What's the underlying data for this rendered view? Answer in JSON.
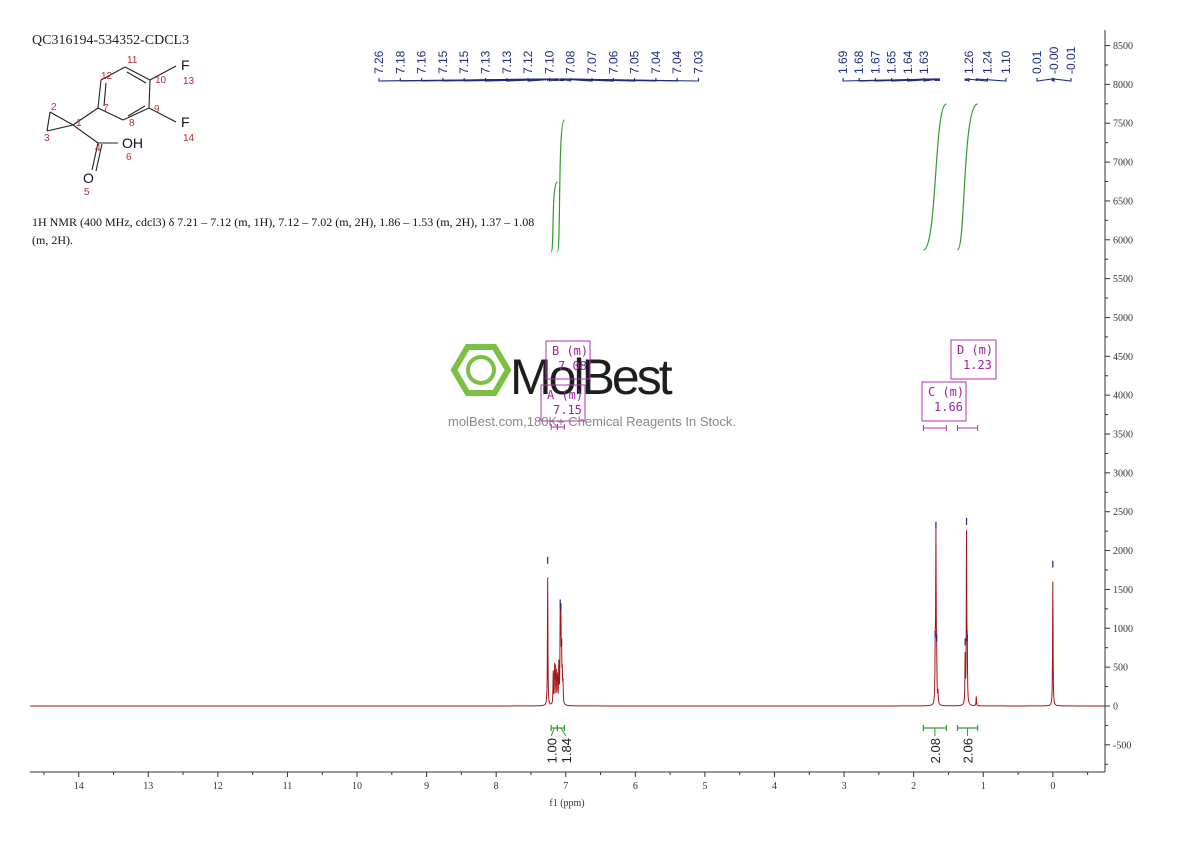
{
  "header": {
    "sample_id": "QC316194-534352-CDCL3",
    "nmr_line1": "1H NMR (400 MHz, cdcl3) δ 7.21 – 7.12 (m, 1H), 7.12 – 7.02 (m, 2H), 1.86 – 1.53 (m, 2H), 1.37 – 1.08",
    "nmr_line2": "(m, 2H)."
  },
  "structure": {
    "atoms": [
      {
        "label": "F",
        "num": "13"
      },
      {
        "label": "F",
        "num": "14"
      },
      {
        "label": "OH",
        "num": "6"
      },
      {
        "label": "O",
        "num": "5"
      }
    ],
    "carbon_numbers": [
      "1",
      "2",
      "3",
      "4",
      "7",
      "8",
      "9",
      "10",
      "11",
      "12"
    ]
  },
  "watermark": {
    "brand": "MolBest",
    "tagline": "molBest.com,180K+ Chemical Reagents In Stock."
  },
  "chart_data": {
    "type": "line",
    "title": "",
    "xlabel": "f1 (ppm)",
    "ylabel": "",
    "xlim": [
      14.7,
      -0.75
    ],
    "ylim": [
      -850,
      8700
    ],
    "x_ticks": [
      14,
      13,
      12,
      11,
      10,
      9,
      8,
      7,
      6,
      5,
      4,
      3,
      2,
      1,
      0
    ],
    "y_ticks": [
      -500,
      0,
      500,
      1000,
      1500,
      2000,
      2500,
      3000,
      3500,
      4000,
      4500,
      5000,
      5500,
      6000,
      6500,
      7000,
      7500,
      8000,
      8500
    ],
    "peaks": [
      {
        "ppm": 7.26,
        "intensity": 1650
      },
      {
        "ppm": 7.18,
        "intensity": 420
      },
      {
        "ppm": 7.16,
        "intensity": 460
      },
      {
        "ppm": 7.15,
        "intensity": 430
      },
      {
        "ppm": 7.13,
        "intensity": 380
      },
      {
        "ppm": 7.12,
        "intensity": 320
      },
      {
        "ppm": 7.1,
        "intensity": 500
      },
      {
        "ppm": 7.08,
        "intensity": 1100
      },
      {
        "ppm": 7.07,
        "intensity": 1050
      },
      {
        "ppm": 7.06,
        "intensity": 600
      },
      {
        "ppm": 7.05,
        "intensity": 350
      },
      {
        "ppm": 7.04,
        "intensity": 250
      },
      {
        "ppm": 1.69,
        "intensity": 700
      },
      {
        "ppm": 1.68,
        "intensity": 2100
      },
      {
        "ppm": 1.67,
        "intensity": 650
      },
      {
        "ppm": 1.65,
        "intensity": 150
      },
      {
        "ppm": 1.26,
        "intensity": 600
      },
      {
        "ppm": 1.24,
        "intensity": 2150
      },
      {
        "ppm": 1.23,
        "intensity": 650
      },
      {
        "ppm": 1.1,
        "intensity": 120
      },
      {
        "ppm": 0.0,
        "intensity": 1600
      }
    ],
    "peak_labels": {
      "aromatic": [
        "7.26",
        "7.18",
        "7.16",
        "7.15",
        "7.15",
        "7.13",
        "7.13",
        "7.12",
        "7.10",
        "7.08",
        "7.07",
        "7.06",
        "7.05",
        "7.04",
        "7.04",
        "7.03"
      ],
      "aliphatic1": [
        "1.69",
        "1.68",
        "1.67",
        "1.65",
        "1.64",
        "1.63"
      ],
      "aliphatic2": [
        "1.26",
        "1.24",
        "1.10"
      ],
      "reference": [
        "0.01",
        "-0.00",
        "-0.01"
      ]
    },
    "multiplets": [
      {
        "name": "A (m)",
        "shift": "7.15"
      },
      {
        "name": "B (m)",
        "shift": "7.08"
      },
      {
        "name": "C (m)",
        "shift": "1.66"
      },
      {
        "name": "D (m)",
        "shift": "1.23"
      }
    ],
    "integrals": [
      {
        "value": "1.00",
        "from": 7.21,
        "to": 7.12
      },
      {
        "value": "1.84",
        "from": 7.12,
        "to": 7.02
      },
      {
        "value": "2.08",
        "from": 1.86,
        "to": 1.53
      },
      {
        "value": "2.06",
        "from": 1.37,
        "to": 1.08
      }
    ],
    "colors": {
      "spectrum": "#a31515",
      "peak_label": "#1f2a80",
      "integral": "#2f9a2f",
      "multiplet": "#b530b5",
      "axis": "#333333"
    }
  }
}
